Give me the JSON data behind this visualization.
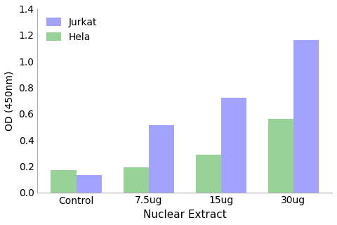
{
  "categories": [
    "Control",
    "7.5ug",
    "15ug",
    "30ug"
  ],
  "series": [
    {
      "label": "Jurkat",
      "values": [
        0.13,
        0.51,
        0.72,
        1.16
      ],
      "color": "#7b7bff"
    },
    {
      "label": "Hela",
      "values": [
        0.17,
        0.19,
        0.29,
        0.56
      ],
      "color": "#6dbf6d"
    }
  ],
  "xlabel": "Nuclear Extract",
  "ylabel": "OD (450nm)",
  "ylim": [
    0,
    1.4
  ],
  "yticks": [
    0.0,
    0.2,
    0.4,
    0.6,
    0.8,
    1.0,
    1.2,
    1.4
  ],
  "bar_width": 0.35,
  "legend_loc": "upper left",
  "background_color": "#ffffff",
  "alpha": 0.7
}
